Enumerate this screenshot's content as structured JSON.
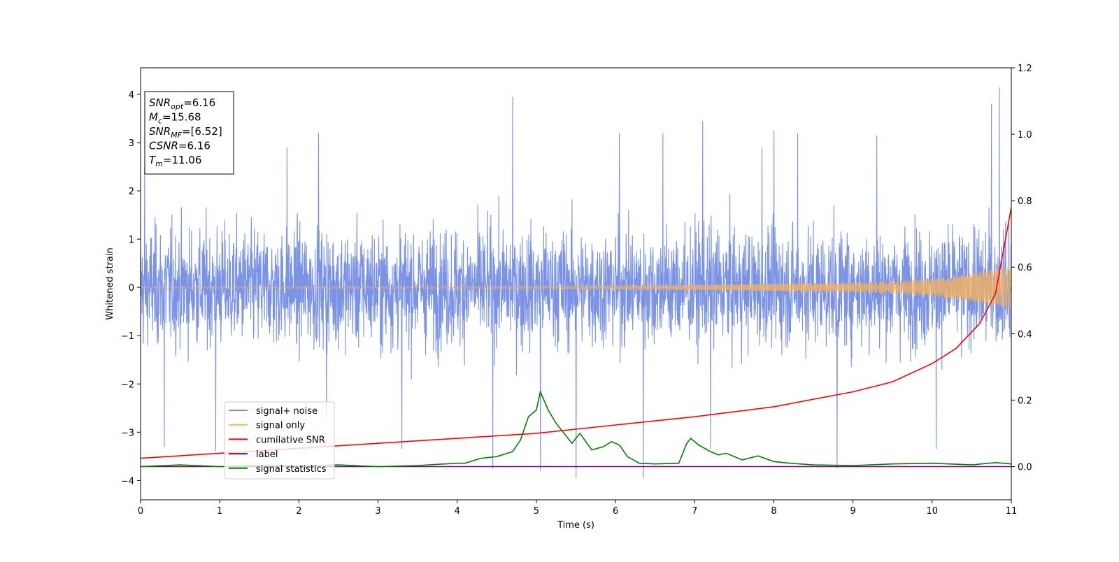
{
  "chart_data": {
    "type": "line",
    "xlabel": "Time (s)",
    "ylabel": "Whitened strain",
    "xlim": [
      0,
      11
    ],
    "ylim_left": [
      -4.4,
      4.55
    ],
    "ylim_right": [
      -0.1,
      1.2
    ],
    "x_ticks": [
      0,
      1,
      2,
      3,
      4,
      5,
      6,
      7,
      8,
      9,
      10,
      11
    ],
    "y_ticks_left": [
      -4,
      -3,
      -2,
      -1,
      0,
      1,
      2,
      3,
      4
    ],
    "y_ticks_right": [
      0.0,
      0.2,
      0.4,
      0.6,
      0.8,
      1.0,
      1.2
    ],
    "grid": false,
    "legend_placement": "lower-left",
    "info_box": {
      "placement": "upper-left",
      "lines": [
        {
          "name": "SNR",
          "sub": "opt",
          "value": "=6.16"
        },
        {
          "name": "M",
          "sub": "c",
          "value": "=15.68"
        },
        {
          "name": "SNR",
          "sub": "MF",
          "value": "=[6.52]"
        },
        {
          "name": "CSNR",
          "sub": "",
          "value": "=6.16"
        },
        {
          "name": "T",
          "sub": "m",
          "value": "=11.06"
        }
      ]
    },
    "series": [
      {
        "name": "signal+ noise",
        "axis": "left",
        "color": "#7a93e6",
        "style": "dense noise",
        "noise_envelope": {
          "typical_max": 2.5,
          "typical_min": -2.5,
          "extreme_max": 4.15,
          "extreme_min": -3.9
        },
        "spikes": [
          [
            0.05,
            2.5
          ],
          [
            0.3,
            -3.3
          ],
          [
            0.95,
            -3.4
          ],
          [
            1.85,
            2.9
          ],
          [
            2.25,
            3.2
          ],
          [
            2.35,
            -2.7
          ],
          [
            3.3,
            -3.35
          ],
          [
            4.45,
            -3.75
          ],
          [
            4.7,
            3.95
          ],
          [
            5.05,
            -3.8
          ],
          [
            5.5,
            -3.95
          ],
          [
            6.05,
            3.2
          ],
          [
            6.35,
            -3.95
          ],
          [
            6.6,
            3.2
          ],
          [
            7.1,
            3.45
          ],
          [
            7.2,
            -3.35
          ],
          [
            7.85,
            2.9
          ],
          [
            8.0,
            3.25
          ],
          [
            8.3,
            3.2
          ],
          [
            8.8,
            -3.75
          ],
          [
            9.3,
            3.15
          ],
          [
            10.05,
            -3.35
          ],
          [
            10.75,
            3.8
          ],
          [
            10.85,
            4.15
          ]
        ]
      },
      {
        "name": "signal only",
        "axis": "left",
        "color": "#f5b25f",
        "style": "chirp",
        "amplitude_points": [
          [
            0,
            0.02
          ],
          [
            5,
            0.03
          ],
          [
            7,
            0.05
          ],
          [
            9,
            0.1
          ],
          [
            10,
            0.18
          ],
          [
            10.5,
            0.3
          ],
          [
            11,
            0.45
          ]
        ]
      },
      {
        "name": "cumilative SNR",
        "axis": "right",
        "color": "#ff0000",
        "x": [
          0,
          1,
          2,
          3,
          4,
          5,
          6,
          7,
          8,
          9,
          9.5,
          10,
          10.3,
          10.6,
          10.8,
          11
        ],
        "y": [
          0.025,
          0.04,
          0.055,
          0.07,
          0.085,
          0.1,
          0.125,
          0.15,
          0.18,
          0.225,
          0.255,
          0.31,
          0.355,
          0.43,
          0.52,
          0.78
        ]
      },
      {
        "name": "label",
        "axis": "right",
        "color": "#800080",
        "x": [
          0,
          11
        ],
        "y": [
          0.0,
          0.0
        ]
      },
      {
        "name": "signal statistics",
        "axis": "right",
        "color": "#008000",
        "x": [
          0,
          0.5,
          1,
          1.5,
          2,
          2.5,
          3,
          3.5,
          4,
          4.1,
          4.3,
          4.5,
          4.7,
          4.8,
          4.9,
          5.0,
          5.05,
          5.15,
          5.25,
          5.35,
          5.45,
          5.55,
          5.7,
          5.85,
          5.95,
          6.05,
          6.15,
          6.3,
          6.5,
          6.8,
          6.9,
          6.95,
          7.05,
          7.2,
          7.3,
          7.4,
          7.6,
          7.8,
          8.0,
          8.2,
          8.5,
          9.0,
          9.5,
          10.0,
          10.5,
          10.8,
          11.0
        ],
        "y": [
          0.0,
          0.005,
          0.0,
          0.003,
          0.002,
          0.005,
          0.0,
          0.003,
          0.01,
          0.01,
          0.025,
          0.03,
          0.045,
          0.08,
          0.15,
          0.17,
          0.225,
          0.17,
          0.13,
          0.1,
          0.07,
          0.1,
          0.05,
          0.06,
          0.075,
          0.065,
          0.03,
          0.01,
          0.008,
          0.01,
          0.07,
          0.085,
          0.065,
          0.045,
          0.035,
          0.04,
          0.02,
          0.032,
          0.015,
          0.01,
          0.005,
          0.003,
          0.008,
          0.01,
          0.005,
          0.012,
          0.008
        ]
      }
    ]
  }
}
